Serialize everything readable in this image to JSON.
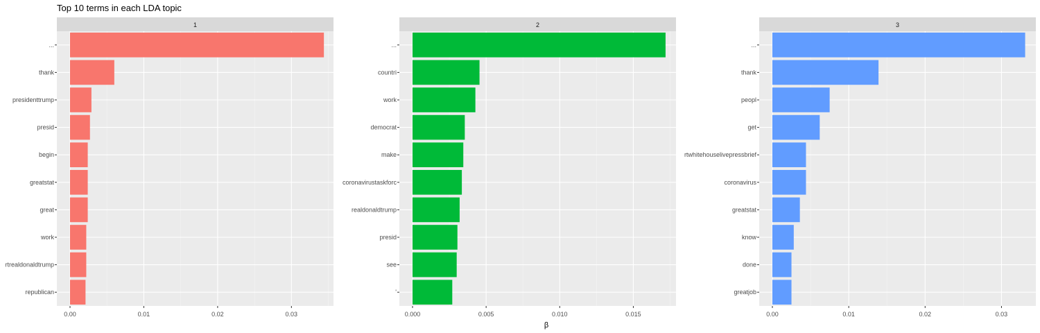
{
  "chart_data": {
    "type": "bar",
    "orientation": "horizontal",
    "title": "Top 10 terms in each LDA topic",
    "xlabel": "β",
    "ylabel": "",
    "grid": true,
    "legend": "none",
    "panels": [
      {
        "name": "1",
        "color": "#F8766D",
        "xlim": [
          0,
          0.0357
        ],
        "xticks": [
          0.0,
          0.01,
          0.02,
          0.03
        ],
        "tick_labels": [
          "0.00",
          "0.01",
          "0.02",
          "0.03"
        ],
        "categories": [
          "...",
          "thank",
          "presidenttrump",
          "presid",
          "begin",
          "greatstat",
          "great",
          "work",
          "rtrealdonaldtrump",
          "republican"
        ],
        "values": [
          0.0344,
          0.006,
          0.0029,
          0.0027,
          0.0024,
          0.0024,
          0.0024,
          0.0022,
          0.0022,
          0.0021
        ]
      },
      {
        "name": "2",
        "color": "#00BA38",
        "xlim": [
          0,
          0.0179
        ],
        "xticks": [
          0.0,
          0.005,
          0.01,
          0.015
        ],
        "tick_labels": [
          "0.000",
          "0.005",
          "0.010",
          "0.015"
        ],
        "categories": [
          "...",
          "countri",
          "work",
          "democrat",
          "make",
          "coronavirustaskforc",
          "realdonaldtrump",
          "presid",
          "see",
          "'"
        ],
        "values": [
          0.01719,
          0.00455,
          0.00427,
          0.00355,
          0.00345,
          0.00335,
          0.0032,
          0.00305,
          0.003,
          0.0027
        ]
      },
      {
        "name": "3",
        "color": "#619CFF",
        "xlim": [
          0,
          0.0345
        ],
        "xticks": [
          0.0,
          0.01,
          0.02,
          0.03
        ],
        "tick_labels": [
          "0.00",
          "0.01",
          "0.02",
          "0.03"
        ],
        "categories": [
          "...",
          "thank",
          "peopl",
          "get",
          "rtwhitehouselivepressbrief",
          "coronavirus",
          "greatstat",
          "know",
          "done",
          "greatjob"
        ],
        "values": [
          0.0331,
          0.0139,
          0.0075,
          0.0062,
          0.0044,
          0.0044,
          0.0036,
          0.0028,
          0.0025,
          0.0025
        ]
      }
    ]
  }
}
